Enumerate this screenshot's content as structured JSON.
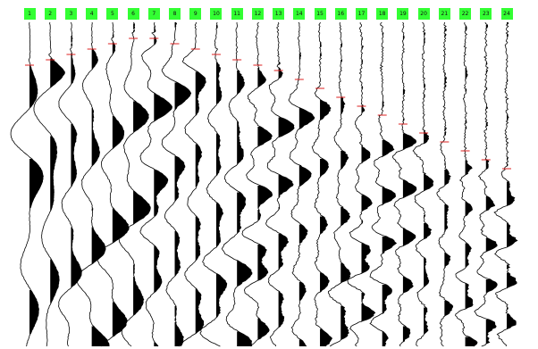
{
  "channels": [
    {
      "label": "1"
    },
    {
      "label": "2"
    },
    {
      "label": "3"
    },
    {
      "label": "4"
    },
    {
      "label": "5"
    },
    {
      "label": "6"
    },
    {
      "label": "7"
    },
    {
      "label": "8"
    },
    {
      "label": "9"
    },
    {
      "label": "10"
    },
    {
      "label": "11"
    },
    {
      "label": "12"
    },
    {
      "label": "13"
    },
    {
      "label": "14"
    },
    {
      "label": "15"
    },
    {
      "label": "16"
    },
    {
      "label": "17"
    },
    {
      "label": "18"
    },
    {
      "label": "19"
    },
    {
      "label": "20"
    },
    {
      "label": "21"
    },
    {
      "label": "22"
    },
    {
      "label": "23"
    },
    {
      "label": "24"
    }
  ],
  "colors": {
    "label_background": "#33ff33",
    "label_text": "#101010",
    "trace": "#000000",
    "first_break_marker": "#dd2222",
    "background": "#ffffff"
  }
}
